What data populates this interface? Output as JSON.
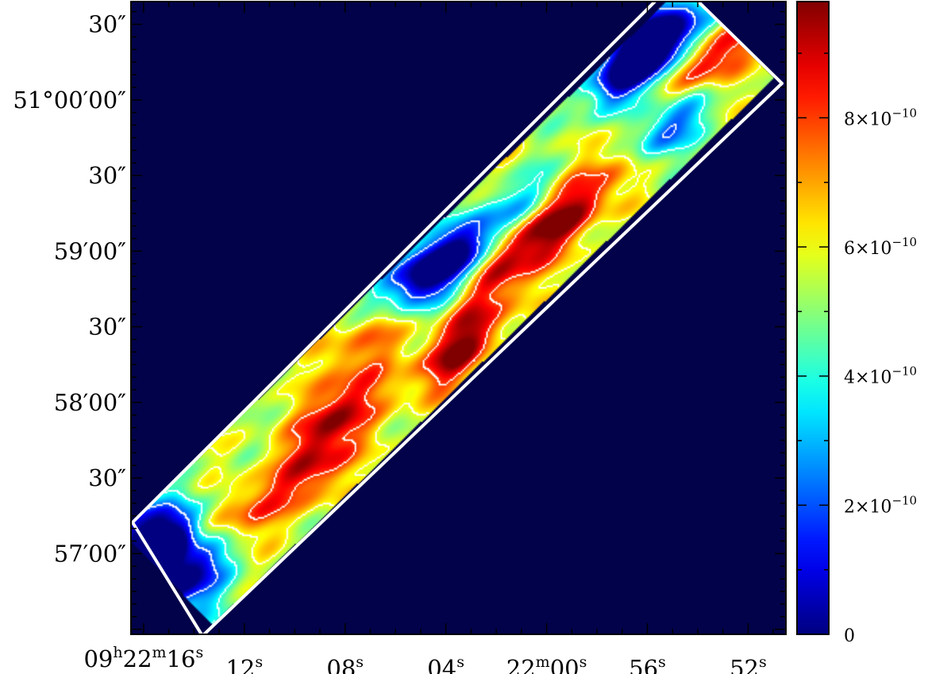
{
  "chart_data": {
    "type": "heatmap",
    "title": "",
    "xlabel": "",
    "ylabel": "",
    "x_axis": {
      "ticks": [
        {
          "h": "09",
          "m": "22",
          "s": "16",
          "value_sec": 16
        },
        {
          "h": "",
          "m": "",
          "s": "12",
          "value_sec": 12
        },
        {
          "h": "",
          "m": "",
          "s": "08",
          "value_sec": 8
        },
        {
          "h": "",
          "m": "",
          "s": "04",
          "value_sec": 4
        },
        {
          "h": "",
          "m": "22",
          "s": "00",
          "value_sec": 0
        },
        {
          "h": "",
          "m": "",
          "s": "56",
          "value_sec": -4
        },
        {
          "h": "",
          "m": "",
          "s": "52",
          "value_sec": -8
        }
      ],
      "range_sec": [
        16.5,
        -9.5
      ]
    },
    "y_axis": {
      "ticks": [
        {
          "label": "30″",
          "value_arcsec": 30
        },
        {
          "label": "51°00′00″",
          "value_arcsec": 0
        },
        {
          "label": "30″",
          "value_arcsec": -30
        },
        {
          "label": "59′00″",
          "value_arcsec": -60
        },
        {
          "label": "30″",
          "value_arcsec": -90
        },
        {
          "label": "58′00″",
          "value_arcsec": -120
        },
        {
          "label": "30″",
          "value_arcsec": -150
        },
        {
          "label": "57′00″",
          "value_arcsec": -180
        }
      ],
      "range_arcsec": [
        39,
        -212
      ]
    },
    "colorbar": {
      "ticks": [
        {
          "mant": "8×10",
          "exp": "−10",
          "value": 8e-10
        },
        {
          "mant": "6×10",
          "exp": "−10",
          "value": 6e-10
        },
        {
          "mant": "4×10",
          "exp": "−10",
          "value": 4e-10
        },
        {
          "mant": "2×10",
          "exp": "−10",
          "value": 2e-10
        },
        {
          "mant": "0",
          "exp": "",
          "value": 0
        }
      ],
      "range": [
        0,
        9.8e-10
      ],
      "colormap": "jet"
    },
    "background_color": "#02024a",
    "footprint_color": "#ffffff",
    "contour_color": "#ffffff",
    "band_base_value": 5.6e-10,
    "hotspots": [
      {
        "t": 0.96,
        "v": 0.1,
        "value": 9.8e-10
      },
      {
        "t": 0.47,
        "v": 0.6,
        "value": 9.8e-10
      },
      {
        "t": 0.62,
        "v": -0.1,
        "value": 9.5e-10
      },
      {
        "t": 0.1,
        "v": 0.1,
        "value": 9e-10
      },
      {
        "t": 0.3,
        "v": 0.0,
        "value": 9.3e-10
      },
      {
        "t": 0.23,
        "v": 0.4,
        "value": 8.6e-10
      },
      {
        "t": 0.68,
        "v": 0.3,
        "value": 9e-10
      },
      {
        "t": 0.57,
        "v": 0.25,
        "value": 7.8e-10
      },
      {
        "t": 0.4,
        "v": -0.5,
        "value": 7.8e-10
      },
      {
        "t": 0.78,
        "v": 0.3,
        "value": 7.5e-10
      }
    ],
    "coldspots": [
      {
        "t": 0.02,
        "v": -0.4,
        "value": 2e-11
      },
      {
        "t": 0.04,
        "v": 0.2,
        "value": 6e-11
      },
      {
        "t": 0.5,
        "v": -0.7,
        "value": 2e-11
      },
      {
        "t": 0.55,
        "v": -0.35,
        "value": 2e-11
      },
      {
        "t": 0.64,
        "v": -0.3,
        "value": 1.2e-10
      },
      {
        "t": 0.88,
        "v": -0.65,
        "value": 4e-11
      },
      {
        "t": 0.92,
        "v": -0.8,
        "value": 5e-11
      },
      {
        "t": 0.86,
        "v": 0.4,
        "value": 1e-10
      },
      {
        "t": 0.95,
        "v": -0.4,
        "value": 2e-10
      }
    ],
    "contour_levels": [
      2e-10,
      4e-10,
      6e-10,
      8e-10
    ]
  }
}
